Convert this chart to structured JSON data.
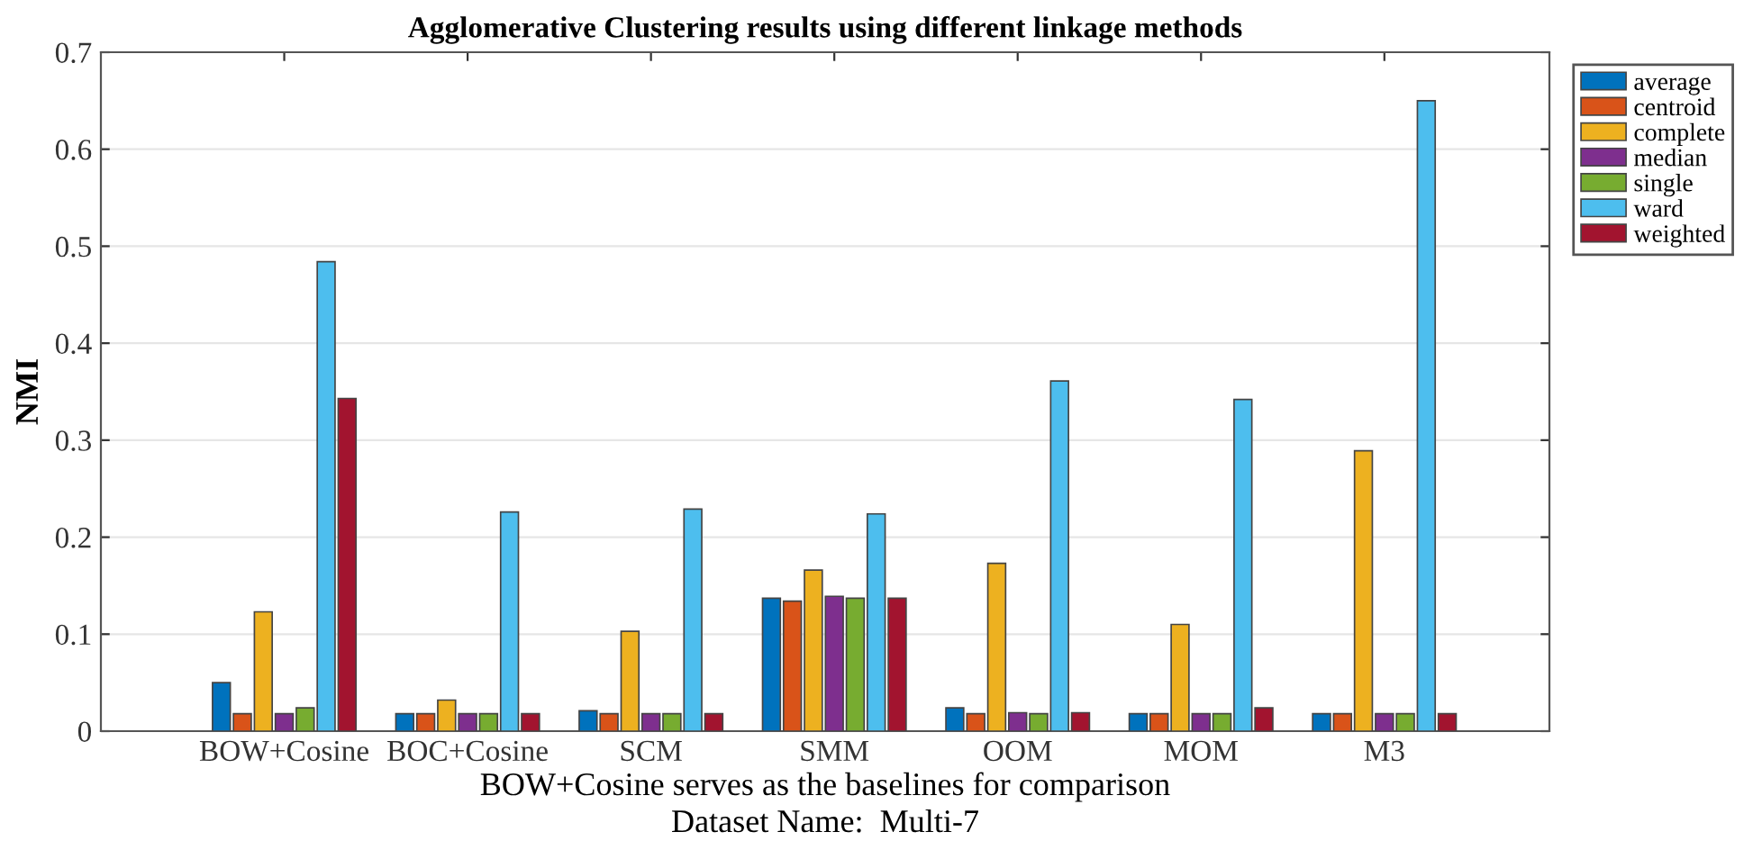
{
  "chart_data": {
    "type": "bar",
    "title": "Agglomerative Clustering results using different linkage methods",
    "xlabel": "BOW+Cosine serves as the baselines for comparison",
    "ylabel": "NMI",
    "annotations": [
      "Dataset Name:  Multi-7"
    ],
    "categories": [
      "BOW+Cosine",
      "BOC+Cosine",
      "SCM",
      "SMM",
      "OOM",
      "MOM",
      "M3"
    ],
    "series": [
      {
        "name": "average",
        "color": "#0072bd",
        "values": [
          0.05,
          0.018,
          0.021,
          0.137,
          0.024,
          0.018,
          0.018
        ]
      },
      {
        "name": "centroid",
        "color": "#d95319",
        "values": [
          0.018,
          0.018,
          0.018,
          0.134,
          0.018,
          0.018,
          0.018
        ]
      },
      {
        "name": "complete",
        "color": "#edb120",
        "values": [
          0.123,
          0.032,
          0.103,
          0.166,
          0.173,
          0.11,
          0.289
        ]
      },
      {
        "name": "median",
        "color": "#7e2f8e",
        "values": [
          0.018,
          0.018,
          0.018,
          0.139,
          0.019,
          0.018,
          0.018
        ]
      },
      {
        "name": "single",
        "color": "#77ac30",
        "values": [
          0.024,
          0.018,
          0.018,
          0.137,
          0.018,
          0.018,
          0.018
        ]
      },
      {
        "name": "ward",
        "color": "#4dbeee",
        "values": [
          0.484,
          0.226,
          0.229,
          0.224,
          0.361,
          0.342,
          0.65
        ]
      },
      {
        "name": "weighted",
        "color": "#a2142f",
        "values": [
          0.343,
          0.018,
          0.018,
          0.137,
          0.019,
          0.024,
          0.018
        ]
      }
    ],
    "ylim": [
      0,
      0.7
    ],
    "yticks": [
      0,
      0.1,
      0.2,
      0.3,
      0.4,
      0.5,
      0.6,
      0.7
    ],
    "grid": "y",
    "legend": "top right"
  }
}
